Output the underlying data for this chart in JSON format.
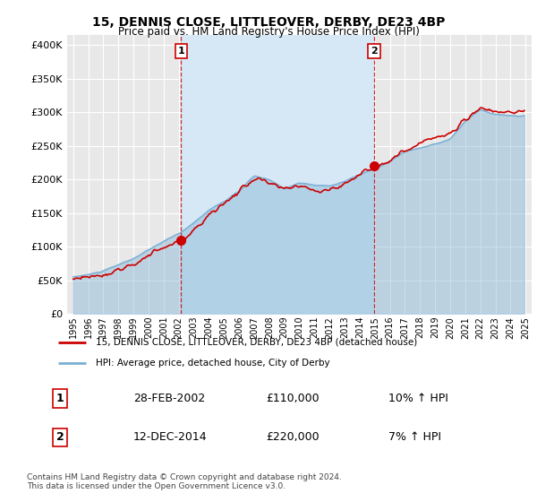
{
  "title": "15, DENNIS CLOSE, LITTLEOVER, DERBY, DE23 4BP",
  "subtitle": "Price paid vs. HM Land Registry's House Price Index (HPI)",
  "legend_line1": "15, DENNIS CLOSE, LITTLEOVER, DERBY, DE23 4BP (detached house)",
  "legend_line2": "HPI: Average price, detached house, City of Derby",
  "sale1_date": "28-FEB-2002",
  "sale1_price": "£110,000",
  "sale1_hpi": "10% ↑ HPI",
  "sale1_year": 2002.16,
  "sale1_value": 110000,
  "sale2_date": "12-DEC-2014",
  "sale2_price": "£220,000",
  "sale2_hpi": "7% ↑ HPI",
  "sale2_year": 2014.95,
  "sale2_value": 220000,
  "footnote1": "Contains HM Land Registry data © Crown copyright and database right 2024.",
  "footnote2": "This data is licensed under the Open Government Licence v3.0.",
  "red_color": "#cc0000",
  "blue_color": "#7aafd4",
  "blue_fill_color": "#d6e8f5",
  "plot_bg": "#e8e8e8",
  "grid_color": "#ffffff",
  "vline_color": "#cc0000"
}
